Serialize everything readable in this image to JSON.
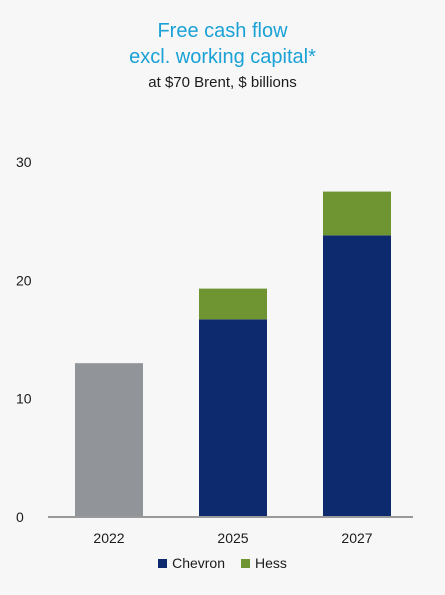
{
  "chart_data": {
    "type": "bar",
    "stacked": true,
    "title_lines": [
      "Free cash flow",
      "excl. working capital*"
    ],
    "subtitle": "at $70 Brent, $ billions",
    "categories": [
      "2022",
      "2025",
      "2027"
    ],
    "series": [
      {
        "name": "",
        "values": [
          13,
          0,
          0
        ],
        "color": "#919599"
      },
      {
        "name": "Chevron",
        "values": [
          0,
          16.7,
          23.8
        ],
        "color": "#0d2a6f"
      },
      {
        "name": "Hess",
        "values": [
          0,
          2.6,
          3.7
        ],
        "color": "#6f9432"
      }
    ],
    "ylim": [
      0,
      30
    ],
    "yticks": [
      0,
      10,
      20,
      30
    ],
    "grid": false,
    "legend_position": "bottom"
  }
}
